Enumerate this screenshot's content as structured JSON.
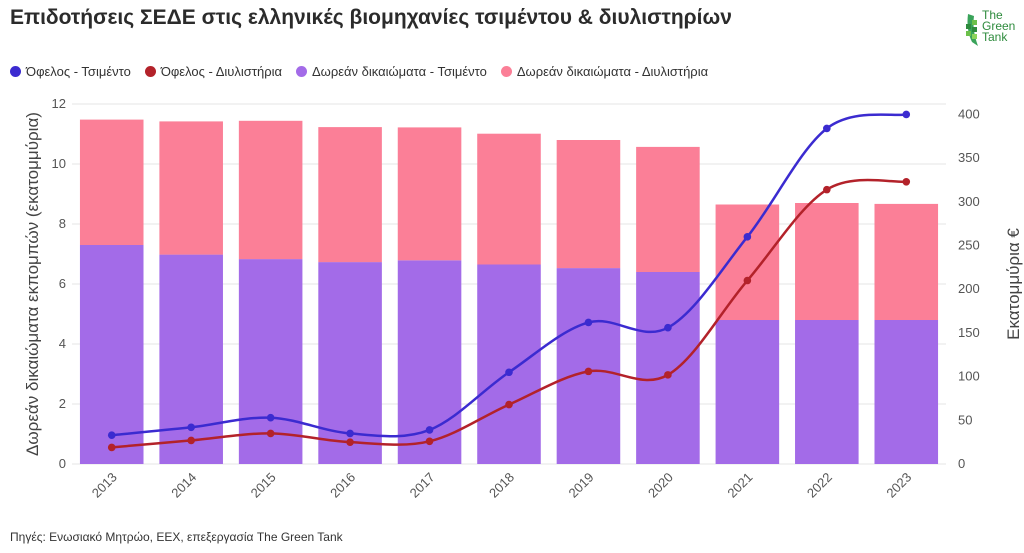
{
  "title": "Επιδοτήσεις ΣΕΔΕ στις ελληνικές βιομηχανίες τσιμέντου & διυλιστηρίων",
  "logo": {
    "line1": "The",
    "line2": "Green",
    "line3": "Tank"
  },
  "footer": "Πηγές: Ενωσιακό Μητρώο, ΕΕΧ, επεξεργασία The Green Tank",
  "colors": {
    "line_cement": "#3b2bd0",
    "line_refinery": "#b3222a",
    "bar_cement": "#a36be8",
    "bar_refinery": "#fb7f97"
  },
  "chart_data": {
    "type": "bar",
    "categories": [
      "2013",
      "2014",
      "2015",
      "2016",
      "2017",
      "2018",
      "2019",
      "2020",
      "2021",
      "2022",
      "2023"
    ],
    "ylabel": "Δωρεάν δικαιώματα εκπομπών (εκατομμύρια)",
    "y2label": "Εκατομμύρια €",
    "ylim": [
      0,
      12
    ],
    "y2lim": [
      0,
      412
    ],
    "yticks": [
      0,
      2,
      4,
      6,
      8,
      10,
      12
    ],
    "y2ticks": [
      0,
      50,
      100,
      150,
      200,
      250,
      300,
      350,
      400
    ],
    "grid": true,
    "legend_position": "top-left",
    "series": [
      {
        "name": "Όφελος - Τσιμέντο",
        "kind": "line",
        "axis": "right",
        "values": [
          33,
          42,
          53,
          35,
          39,
          105,
          162,
          156,
          260,
          384,
          400
        ]
      },
      {
        "name": "Όφελος - Διυλιστήρια",
        "kind": "line",
        "axis": "right",
        "values": [
          19,
          27,
          35,
          25,
          26,
          68,
          106,
          102,
          210,
          314,
          323
        ]
      },
      {
        "name": "Δωρεάν δικαιώματα - Τσιμέντο",
        "kind": "bar",
        "axis": "left",
        "stack": "a",
        "values": [
          7.3,
          6.98,
          6.83,
          6.73,
          6.79,
          6.65,
          6.53,
          6.4,
          4.8,
          4.8,
          4.8
        ]
      },
      {
        "name": "Δωρεάν δικαιώματα - Διυλιστήρια",
        "kind": "bar",
        "axis": "left",
        "stack": "a",
        "values": [
          4.18,
          4.44,
          4.61,
          4.5,
          4.43,
          4.36,
          4.27,
          4.17,
          3.85,
          3.9,
          3.87
        ]
      }
    ]
  }
}
